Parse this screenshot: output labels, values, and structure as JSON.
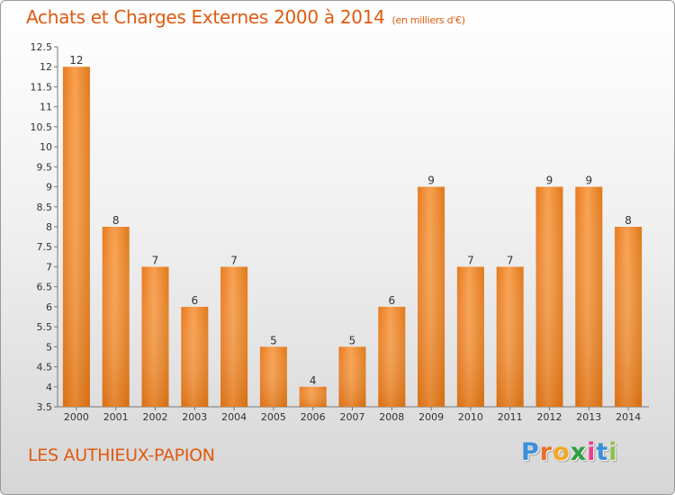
{
  "chart_data": {
    "type": "bar",
    "title": "Achats et Charges Externes 2000 à 2014",
    "subtitle": "(en milliers d'€)",
    "categories": [
      "2000",
      "2001",
      "2002",
      "2003",
      "2004",
      "2005",
      "2006",
      "2007",
      "2008",
      "2009",
      "2010",
      "2011",
      "2012",
      "2013",
      "2014"
    ],
    "values": [
      12,
      8,
      7,
      6,
      7,
      5,
      4,
      5,
      6,
      9,
      7,
      7,
      9,
      9,
      8
    ],
    "ylim": [
      3.5,
      12.5
    ],
    "yticks": [
      "3.5",
      "4",
      "4.5",
      "5",
      "5.5",
      "6",
      "6.5",
      "7",
      "7.5",
      "8",
      "8.5",
      "9",
      "9.5",
      "10",
      "10.5",
      "11",
      "11.5",
      "12",
      "12.5"
    ],
    "xlabel": "",
    "ylabel": "",
    "grid": false,
    "bar_color": "#f08c2c"
  },
  "footer": {
    "commune": "LES AUTHIEUX-PAPION",
    "logo_letters": [
      {
        "ch": "P",
        "color": "#3a8fd8"
      },
      {
        "ch": "r",
        "color": "#e8702a"
      },
      {
        "ch": "o",
        "color": "#f5a623"
      },
      {
        "ch": "x",
        "color": "#2f9e44"
      },
      {
        "ch": "i",
        "color": "#e83e8c"
      },
      {
        "ch": "t",
        "color": "#3a8fd8"
      },
      {
        "ch": "i",
        "color": "#8bc34a"
      }
    ]
  }
}
